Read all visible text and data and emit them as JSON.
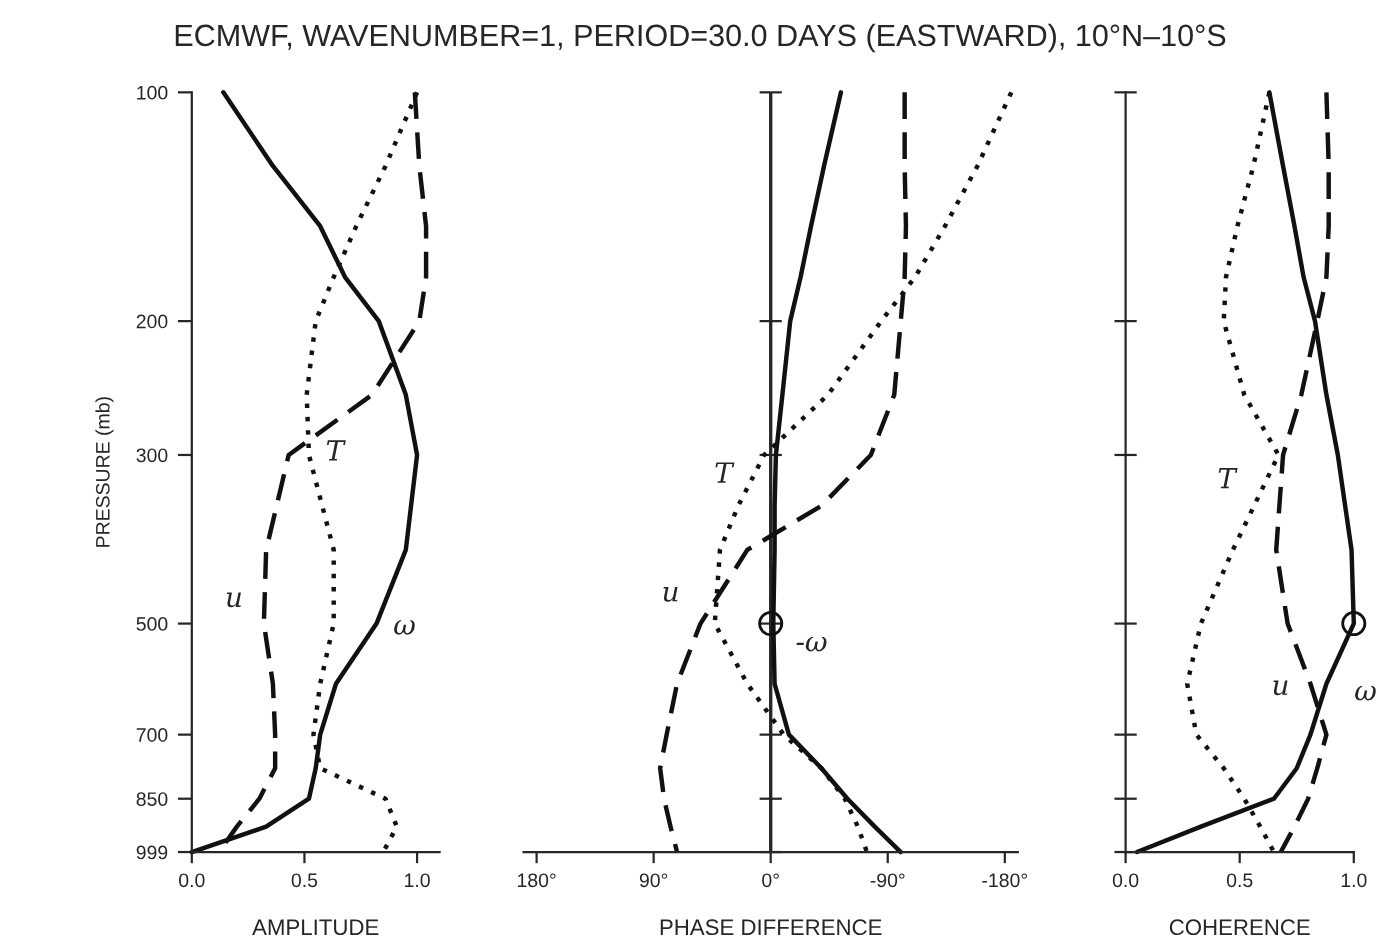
{
  "chart_data": [
    {
      "type": "line",
      "title": "ECMWF, WAVENUMBER=1, PERIOD=30.0 DAYS (EASTWARD), 10°N–10°S",
      "xlabel": "AMPLITUDE",
      "ylabel": "PRESSURE (mb)",
      "orientation": "horizontal",
      "log": "y",
      "x": [
        100,
        125,
        150,
        175,
        200,
        250,
        300,
        400,
        500,
        600,
        700,
        775,
        850,
        925,
        999
      ],
      "xlim": [
        0,
        1.1
      ],
      "xticks": [
        {
          "value": 0,
          "label": "0.0"
        },
        0.5,
        {
          "value": 1,
          "label": "1.0"
        }
      ],
      "ylim": [
        999,
        100
      ],
      "yticks": [
        100,
        200,
        300,
        500,
        700,
        850,
        999
      ],
      "series": [
        {
          "name": "ω",
          "color": "#111111",
          "line_style": "solid",
          "values": [
            0.14,
            0.36,
            0.57,
            0.68,
            0.83,
            0.95,
            1.0,
            0.95,
            0.82,
            0.64,
            0.57,
            0.55,
            0.52,
            0.33,
            0.0
          ]
        },
        {
          "name": "T",
          "color": "#111111",
          "line_style": "dotted",
          "values": [
            1.0,
            0.86,
            0.73,
            0.63,
            0.55,
            0.51,
            0.52,
            0.63,
            0.63,
            0.57,
            0.54,
            0.57,
            0.86,
            0.91,
            0.85
          ]
        },
        {
          "name": "u",
          "color": "#111111",
          "line_style": "dashed",
          "values": [
            0.99,
            1.01,
            1.04,
            1.04,
            1.01,
            0.8,
            0.43,
            0.33,
            0.32,
            0.36,
            0.37,
            0.37,
            0.3,
            0.2,
            0.12
          ]
        }
      ]
    },
    {
      "type": "line",
      "xlabel": "PHASE DIFFERENCE",
      "orientation": "horizontal",
      "tick_labels": "x",
      "log": "y",
      "ref_lines": [
        {
          "axis": "x",
          "value": 0
        }
      ],
      "x": [
        100,
        125,
        150,
        175,
        200,
        250,
        300,
        350,
        400,
        500,
        600,
        700,
        775,
        850,
        925,
        999
      ],
      "xlim": [
        190,
        -190
      ],
      "xticks": [
        {
          "value": 180,
          "label": "180°"
        },
        {
          "value": 90,
          "label": "90°"
        },
        {
          "value": 0,
          "label": "0°"
        },
        {
          "value": -90,
          "label": "-90°"
        },
        {
          "value": -180,
          "label": "-180°"
        }
      ],
      "ylim": [
        999,
        100
      ],
      "yticks": [
        100,
        200,
        300,
        500,
        700,
        850,
        999
      ],
      "series": [
        {
          "name": "-ω",
          "color": "#111111",
          "line_style": "solid",
          "values": [
            -54,
            -41,
            -31,
            -23,
            -15,
            -9,
            -4,
            -3,
            -3,
            -2,
            -3,
            -14,
            -39,
            -59,
            -80,
            -100
          ]
        },
        {
          "name": "T",
          "color": "#111111",
          "line_style": "dotted",
          "values": [
            -185,
            -159,
            -134,
            -111,
            -85,
            -44,
            5,
            25,
            39,
            43,
            18,
            -10,
            -39,
            -57,
            -67,
            -74
          ]
        },
        {
          "name": "u",
          "color": "#111111",
          "line_style": "dashed",
          "values": [
            -103,
            -103,
            -104,
            -103,
            -100,
            -95,
            -77,
            -39,
            18,
            54,
            72,
            80,
            85,
            82,
            77,
            72
          ]
        },
        {
          "type": "scatter",
          "color": "#111111",
          "marker": "circle",
          "x": [
            500
          ],
          "values": [
            0
          ]
        }
      ]
    },
    {
      "type": "line",
      "xlabel": "COHERENCE",
      "orientation": "horizontal",
      "tick_labels": "x",
      "log": "y",
      "x": [
        100,
        125,
        150,
        175,
        200,
        250,
        300,
        400,
        500,
        600,
        700,
        775,
        850,
        925,
        999
      ],
      "xlim": [
        0,
        1.0
      ],
      "xticks": [
        {
          "value": 0,
          "label": "0.0"
        },
        0.5,
        {
          "value": 1,
          "label": "1.0"
        }
      ],
      "ylim": [
        999,
        100
      ],
      "yticks": [
        100,
        200,
        300,
        500,
        700,
        850,
        999
      ],
      "series": [
        {
          "name": "ω",
          "color": "#111111",
          "line_style": "solid",
          "values": [
            0.63,
            0.69,
            0.74,
            0.78,
            0.83,
            0.88,
            0.93,
            0.99,
            1.0,
            0.88,
            0.81,
            0.75,
            0.65,
            0.33,
            0.05
          ]
        },
        {
          "name": "T",
          "color": "#111111",
          "line_style": "dotted",
          "values": [
            0.63,
            0.56,
            0.49,
            0.44,
            0.43,
            0.52,
            0.67,
            0.47,
            0.33,
            0.27,
            0.31,
            0.43,
            0.52,
            0.59,
            0.65
          ]
        },
        {
          "name": "u",
          "color": "#111111",
          "line_style": "dashed",
          "values": [
            0.88,
            0.89,
            0.89,
            0.88,
            0.84,
            0.77,
            0.69,
            0.66,
            0.71,
            0.81,
            0.88,
            0.84,
            0.8,
            0.74,
            0.68
          ]
        },
        {
          "type": "scatter",
          "color": "#111111",
          "marker": "circle",
          "x": [
            500
          ],
          "values": [
            1.0
          ]
        }
      ]
    }
  ]
}
